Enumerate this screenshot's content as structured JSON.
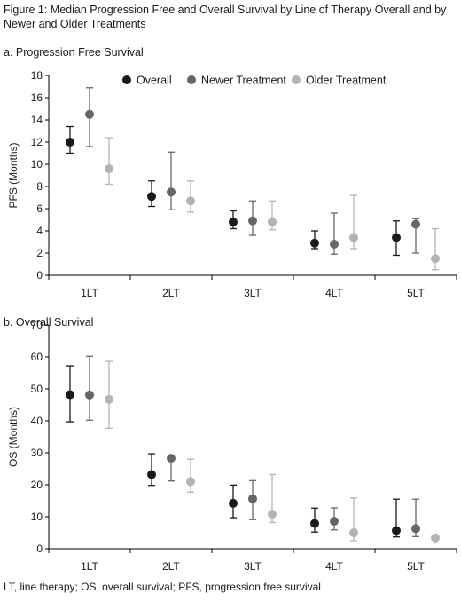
{
  "figure_title": "Figure 1: Median Progression Free and Overall Survival by Line of Therapy Overall and by Newer and Older Treatments",
  "panels": {
    "a": {
      "label": "a.  Progression Free Survival"
    },
    "b": {
      "label": "b.  Overall Survival"
    }
  },
  "footnote": "LT, line therapy; OS, overall survival; PFS, progression free survival",
  "colors": {
    "Overall": "#1a1a1a",
    "Newer Treatment": "#666666",
    "Older Treatment": "#b3b3b3",
    "axis": "#000000"
  },
  "chart_data": [
    {
      "type": "scatter",
      "ylabel": "PFS (Months)",
      "ylim": [
        0,
        18
      ],
      "yticks": [
        0,
        2,
        4,
        6,
        8,
        10,
        12,
        14,
        16,
        18
      ],
      "categories": [
        "1LT",
        "2LT",
        "3LT",
        "4LT",
        "5LT"
      ],
      "legend": "top-center",
      "error_bars": true,
      "series": [
        {
          "name": "Overall",
          "values": [
            12.0,
            7.1,
            4.8,
            2.9,
            3.4
          ],
          "lower": [
            11.0,
            6.2,
            4.2,
            2.4,
            1.8
          ],
          "upper": [
            13.4,
            8.5,
            5.8,
            4.0,
            4.9
          ]
        },
        {
          "name": "Newer Treatment",
          "values": [
            14.5,
            7.5,
            4.9,
            2.8,
            4.6
          ],
          "lower": [
            11.6,
            5.9,
            3.6,
            1.9,
            2.0
          ],
          "upper": [
            16.9,
            11.1,
            6.7,
            5.6,
            5.1
          ]
        },
        {
          "name": "Older Treatment",
          "values": [
            9.6,
            6.7,
            4.8,
            3.4,
            1.5
          ],
          "lower": [
            8.2,
            5.7,
            4.1,
            2.4,
            0.5
          ],
          "upper": [
            12.4,
            8.5,
            6.7,
            7.2,
            4.2
          ]
        }
      ]
    },
    {
      "type": "scatter",
      "ylabel": "OS (Months)",
      "ylim": [
        0,
        70
      ],
      "yticks": [
        0,
        10,
        20,
        30,
        40,
        50,
        60,
        70
      ],
      "categories": [
        "1LT",
        "2LT",
        "3LT",
        "4LT",
        "5LT"
      ],
      "error_bars": true,
      "series": [
        {
          "name": "Overall",
          "values": [
            48.2,
            23.2,
            14.2,
            7.9,
            5.7
          ],
          "lower": [
            39.7,
            19.8,
            9.7,
            5.2,
            3.7
          ],
          "upper": [
            57.2,
            29.7,
            19.9,
            12.7,
            15.5
          ]
        },
        {
          "name": "Newer Treatment",
          "values": [
            48.1,
            28.3,
            15.6,
            8.6,
            6.3
          ],
          "lower": [
            40.2,
            21.2,
            9.1,
            5.9,
            3.8
          ],
          "upper": [
            60.2,
            28.5,
            21.3,
            12.8,
            15.5
          ]
        },
        {
          "name": "Older Treatment",
          "values": [
            46.7,
            21.0,
            10.8,
            5.0,
            3.4
          ],
          "lower": [
            37.7,
            17.7,
            8.2,
            2.5,
            1.8
          ],
          "upper": [
            58.6,
            28.0,
            23.2,
            15.9,
            4.2
          ]
        }
      ]
    }
  ]
}
